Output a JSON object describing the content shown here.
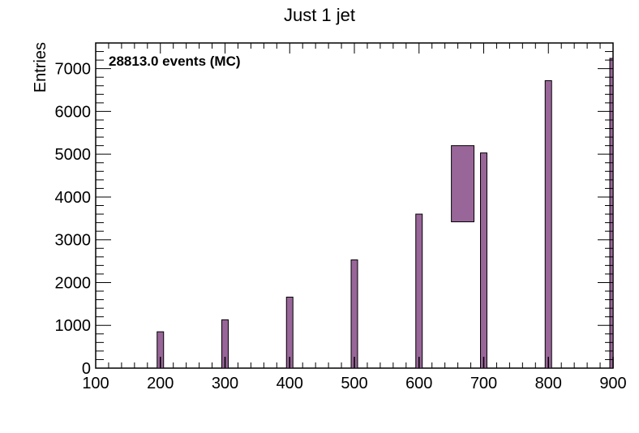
{
  "chart_data": {
    "type": "bar",
    "title": "Just 1 jet",
    "xlabel": "",
    "ylabel": "Entries",
    "annotation": "28813.0 events (MC)",
    "xlim": [
      100,
      900
    ],
    "ylim": [
      0,
      7600
    ],
    "x_ticks": [
      100,
      200,
      300,
      400,
      500,
      600,
      700,
      800,
      900
    ],
    "y_ticks": [
      0,
      1000,
      2000,
      3000,
      4000,
      5000,
      6000,
      7000
    ],
    "bin_width": 10,
    "bars": [
      {
        "x": 200,
        "value": 850
      },
      {
        "x": 300,
        "value": 1130
      },
      {
        "x": 400,
        "value": 1660
      },
      {
        "x": 500,
        "value": 2530
      },
      {
        "x": 600,
        "value": 3600
      },
      {
        "x": 700,
        "value": 5030
      },
      {
        "x": 800,
        "value": 6720
      },
      {
        "x": 900,
        "value": 7240
      }
    ],
    "boxes": [
      {
        "x0": 650,
        "x1": 685,
        "y0": 3420,
        "y1": 5200
      }
    ],
    "fill_color": "#996699",
    "grid": false,
    "legend": "none"
  }
}
